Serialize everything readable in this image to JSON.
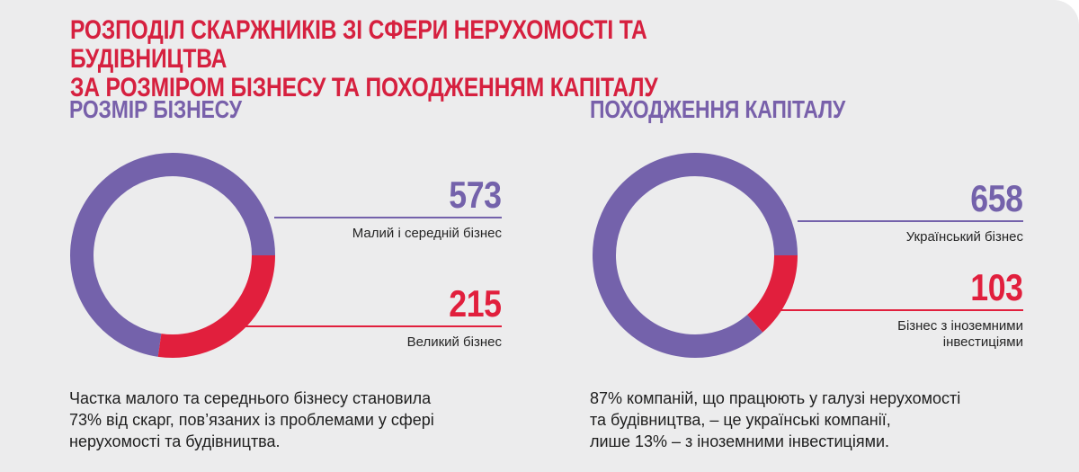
{
  "title_lines": [
    "РОЗПОДІЛ СКАРЖНИКІВ ЗІ СФЕРИ НЕРУХОМОСТІ ТА БУДІВНИЦТВА",
    "ЗА РОЗМІРОМ БІЗНЕСУ ТА ПОХОДЖЕННЯМ КАПІТАЛУ"
  ],
  "sections": {
    "left": {
      "title": "РОЗМІР БІЗНЕСУ",
      "description_lines": [
        "Частка малого та середнього бізнесу становила",
        "73% від скарг, пов’язаних із проблемами у сфері",
        "нерухомості та будівництва."
      ]
    },
    "right": {
      "title": "ПОХОДЖЕННЯ КАПІТАЛУ",
      "description_lines": [
        "87% компаній, що працюють у галузі нерухомості",
        "та будівництва, – це українські компанії,",
        "лише 13% – з іноземними інвестиціями."
      ]
    }
  },
  "colors": {
    "background": "#ececed",
    "title": "#d6203f",
    "section_title": "#7860aa",
    "purple": "#7462ab",
    "red": "#e11f3d",
    "text": "#202020"
  },
  "chart_data": [
    {
      "type": "pie",
      "variant": "donut",
      "categories": [
        "Малий і середній бізнес",
        "Великий бізнес"
      ],
      "values": [
        573,
        215
      ],
      "colors": [
        "#7462ab",
        "#e11f3d"
      ],
      "value_labels": [
        "573",
        "215"
      ],
      "label_lines": [
        [
          "Малий і середній бізнес"
        ],
        [
          "Великий бізнес"
        ]
      ],
      "title": "",
      "xlabel": "",
      "ylabel": "",
      "grid": false,
      "legend": "right"
    },
    {
      "type": "pie",
      "variant": "donut",
      "categories": [
        "Український бізнес",
        "Бізнес з іноземними інвестиціями"
      ],
      "values": [
        658,
        103
      ],
      "colors": [
        "#7462ab",
        "#e11f3d"
      ],
      "value_labels": [
        "658",
        "103"
      ],
      "label_lines": [
        [
          "Український бізнес"
        ],
        [
          "Бізнес з іноземними",
          "інвестиціями"
        ]
      ],
      "title": "",
      "xlabel": "",
      "ylabel": "",
      "grid": false,
      "legend": "right"
    }
  ]
}
